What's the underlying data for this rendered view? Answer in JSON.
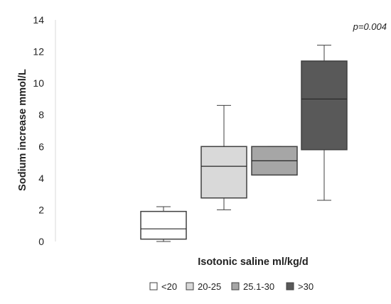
{
  "chart_data": {
    "type": "boxplot",
    "title": "",
    "xlabel": "Isotonic saline ml/kg/d",
    "ylabel": "Sodium increase mmol/L",
    "ylim": [
      0,
      14
    ],
    "yticks": [
      0,
      2,
      4,
      6,
      8,
      10,
      12,
      14
    ],
    "grid": false,
    "legend_position": "bottom",
    "annotation": "p=0.004",
    "categories": [
      "<20",
      "20-25",
      "25.1-30",
      ">30"
    ],
    "series": [
      {
        "name": "<20",
        "color": "#ffffff",
        "min": 0.0,
        "q1": 0.15,
        "median": 0.8,
        "q3": 1.9,
        "max": 2.2
      },
      {
        "name": "20-25",
        "color": "#d9d9d9",
        "min": 2.0,
        "q1": 2.75,
        "median": 4.75,
        "q3": 6.0,
        "max": 8.6
      },
      {
        "name": "25.1-30",
        "color": "#a6a6a6",
        "min": 4.2,
        "q1": 4.2,
        "median": 5.1,
        "q3": 6.0,
        "max": 6.0
      },
      {
        "name": ">30",
        "color": "#595959",
        "min": 2.6,
        "q1": 5.8,
        "median": 9.0,
        "q3": 11.4,
        "max": 12.4
      }
    ]
  }
}
